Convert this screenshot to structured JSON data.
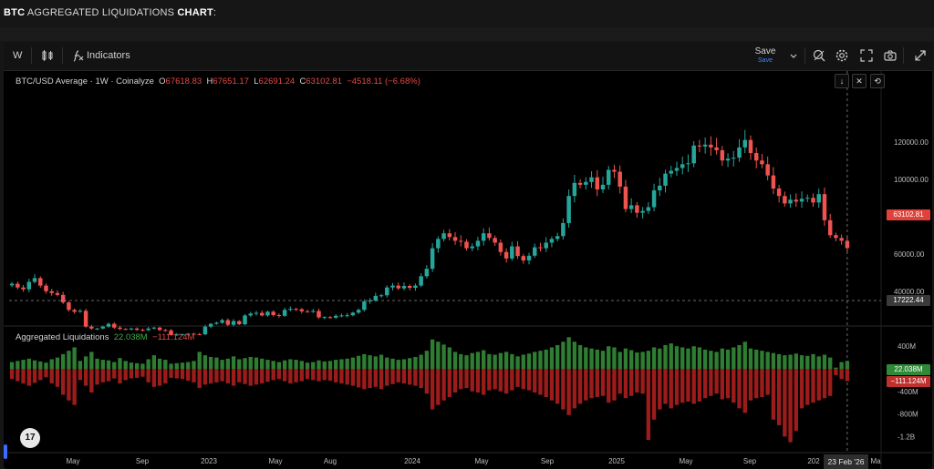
{
  "page": {
    "title_bold": "BTC",
    "title_rest": " AGGREGATED LIQUIDATIONS ",
    "title_bold2": "CHART",
    "title_colon": ":"
  },
  "toolbar": {
    "interval": "W",
    "indicators_label": "Indicators",
    "save_label": "Save",
    "save_sub": "Save",
    "icons": [
      "candles-icon",
      "indicators-icon",
      "chevron-down-icon",
      "alert-icon",
      "gear-icon",
      "fullscreen-icon",
      "camera-icon",
      "publish-icon"
    ]
  },
  "legend": {
    "symbol": "BTC/USD Average · 1W · Coinalyze",
    "o_label": "O",
    "o": "67618.83",
    "h_label": "H",
    "h": "67651.17",
    "l_label": "L",
    "l": "62691.24",
    "c_label": "C",
    "c": "63102.81",
    "change": "−4518.11 (−6.68%)"
  },
  "liq_legend": {
    "name": "Aggregated Liquidations",
    "long": "22.038M",
    "short": "−111.124M"
  },
  "price_tags": {
    "last": "63102.81",
    "crosshair": "17222.44",
    "liq_pos": "22.038M",
    "liq_neg": "−111.124M"
  },
  "crosshair_date": "23 Feb '26",
  "colors": {
    "up": "#26a69a",
    "down": "#ef5350",
    "liq_long": "#2e7d32",
    "liq_short": "#9c1c1c",
    "background": "#000000"
  },
  "chart_data": [
    {
      "type": "candlestick",
      "title": "BTC/USD Average · 1W · Coinalyze",
      "y_axis_ticks": [
        120000,
        100000,
        80000,
        60000,
        40000
      ],
      "ylim": [
        15000,
        128000
      ],
      "x_tick_labels": [
        "May",
        "Sep",
        "2023",
        "May",
        "Aug",
        "2024",
        "May",
        "Sep",
        "2025",
        "May",
        "Sep",
        "202",
        "Ma"
      ],
      "approx_weekly_close": [
        44000,
        42000,
        41000,
        45000,
        47000,
        43000,
        40000,
        39000,
        38000,
        34000,
        30000,
        29000,
        29500,
        21000,
        20000,
        20000,
        21000,
        22500,
        20500,
        19800,
        19500,
        20000,
        19300,
        19100,
        20000,
        20500,
        19200,
        19000,
        16500,
        16800,
        16900,
        17200,
        17000,
        16900,
        21000,
        22500,
        23100,
        24500,
        22000,
        24000,
        22300,
        27000,
        28000,
        28400,
        27000,
        29000,
        27200,
        26800,
        30000,
        30500,
        30300,
        29200,
        29100,
        29400,
        26000,
        26100,
        25800,
        26800,
        27000,
        27100,
        28500,
        30000,
        34500,
        35000,
        37500,
        37800,
        42000,
        43000,
        41500,
        42800,
        41800,
        43000,
        48000,
        52000,
        63000,
        68000,
        71000,
        69000,
        67000,
        66500,
        63000,
        64000,
        67000,
        71000,
        68500,
        66000,
        61000,
        57500,
        64000,
        58800,
        56500,
        59000,
        63500,
        63000,
        66000,
        68000,
        69500,
        76500,
        91000,
        98000,
        97000,
        98500,
        101000,
        94500,
        97000,
        105000,
        104000,
        96000,
        84000,
        86000,
        82000,
        83000,
        85000,
        94000,
        96500,
        103000,
        104500,
        106000,
        108000,
        108500,
        118000,
        117500,
        118500,
        117000,
        115500,
        110000,
        111000,
        111500,
        117000,
        121000,
        114000,
        110000,
        108000,
        102000,
        95000,
        91000,
        87000,
        89000,
        88000,
        89500,
        90000,
        87500,
        92000,
        78000,
        70000,
        68500,
        67000,
        63103
      ]
    },
    {
      "type": "bar",
      "title": "Aggregated Liquidations",
      "y_axis_ticks": [
        "400M",
        "-400M",
        "-800M",
        "-1.2B"
      ],
      "series": [
        {
          "name": "long",
          "last": 22.038
        },
        {
          "name": "short",
          "last": -111.124
        }
      ],
      "unit": "M"
    }
  ]
}
